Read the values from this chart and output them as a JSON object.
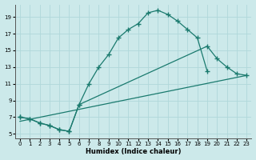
{
  "xlabel": "Humidex (Indice chaleur)",
  "bg_color": "#cce9ea",
  "grid_color": "#b0d8da",
  "line_color": "#1a7a6e",
  "xlim": [
    -0.5,
    23.5
  ],
  "ylim": [
    4.5,
    20.5
  ],
  "yticks": [
    5,
    7,
    9,
    11,
    13,
    15,
    17,
    19
  ],
  "xticks": [
    0,
    1,
    2,
    3,
    4,
    5,
    6,
    7,
    8,
    9,
    10,
    11,
    12,
    13,
    14,
    15,
    16,
    17,
    18,
    19,
    20,
    21,
    22,
    23
  ],
  "curve1_x": [
    0,
    1,
    2,
    3,
    4,
    5,
    6,
    7,
    8,
    9,
    10,
    11,
    12,
    13,
    14,
    15,
    16,
    17,
    18,
    19
  ],
  "curve1_y": [
    7.0,
    6.8,
    6.3,
    6.0,
    5.5,
    5.3,
    8.5,
    11.0,
    13.0,
    14.5,
    16.5,
    17.5,
    18.2,
    19.5,
    19.8,
    19.3,
    18.5,
    17.5,
    16.5,
    12.5
  ],
  "curve2_x": [
    0,
    1,
    2,
    3,
    4,
    5,
    6,
    19,
    20,
    21,
    22,
    23
  ],
  "curve2_y": [
    7.0,
    6.8,
    6.3,
    6.0,
    5.5,
    5.3,
    8.5,
    15.5,
    14.0,
    13.0,
    12.2,
    12.0
  ],
  "curve3_x": [
    0,
    23
  ],
  "curve3_y": [
    6.5,
    12.0
  ]
}
